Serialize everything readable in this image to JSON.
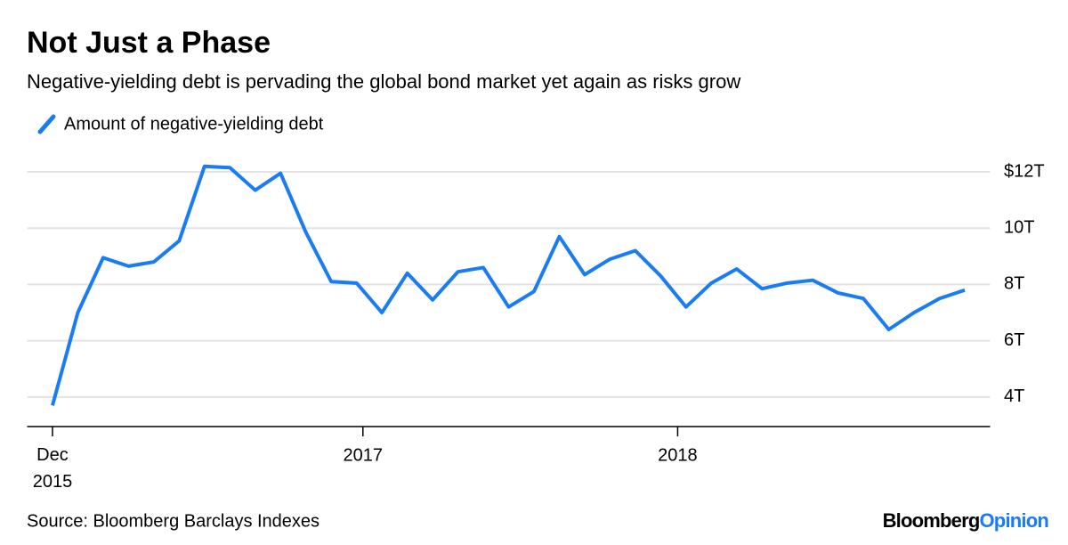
{
  "chart_data": {
    "type": "line",
    "title": "Not Just a Phase",
    "subtitle": "Negative-yielding debt is pervading the global bond market yet again as risks grow",
    "source": "Source: Bloomberg Barclays Indexes",
    "brand": [
      "Bloomberg",
      "Opinion"
    ],
    "x": [
      0,
      1,
      2,
      3,
      4,
      5,
      6,
      7,
      8,
      9,
      10,
      11,
      12,
      13,
      14,
      15,
      16,
      17,
      18,
      19,
      20,
      21,
      22,
      23,
      24,
      25,
      26,
      27,
      28,
      29,
      30,
      31,
      32,
      33,
      34,
      35,
      36
    ],
    "series": [
      {
        "name": "Amount of negative-yielding debt",
        "color": "#1a7cf5",
        "values": [
          3.7,
          7.0,
          8.95,
          8.65,
          8.8,
          9.55,
          12.2,
          12.15,
          11.35,
          11.95,
          9.85,
          8.1,
          8.05,
          7.0,
          8.4,
          7.45,
          8.45,
          8.6,
          7.2,
          7.75,
          9.7,
          8.35,
          8.9,
          9.2,
          8.3,
          7.2,
          8.05,
          8.55,
          7.85,
          8.05,
          8.15,
          7.7,
          7.5,
          6.4,
          7.0,
          7.5,
          7.8
        ]
      }
    ],
    "xlim": [
      -1,
      37
    ],
    "xticks": [
      {
        "value": 0,
        "label": "Dec 2015"
      },
      {
        "value": 12.25,
        "label": "2017"
      },
      {
        "value": 24.67,
        "label": "2018"
      }
    ],
    "ylim": [
      2.95,
      12.7
    ],
    "yticks": [
      {
        "value": 4,
        "label": "4T"
      },
      {
        "value": 6,
        "label": "6T"
      },
      {
        "value": 8,
        "label": "8T"
      },
      {
        "value": 10,
        "label": "10T"
      },
      {
        "value": 12,
        "label": "$12T"
      }
    ],
    "grid": true
  }
}
